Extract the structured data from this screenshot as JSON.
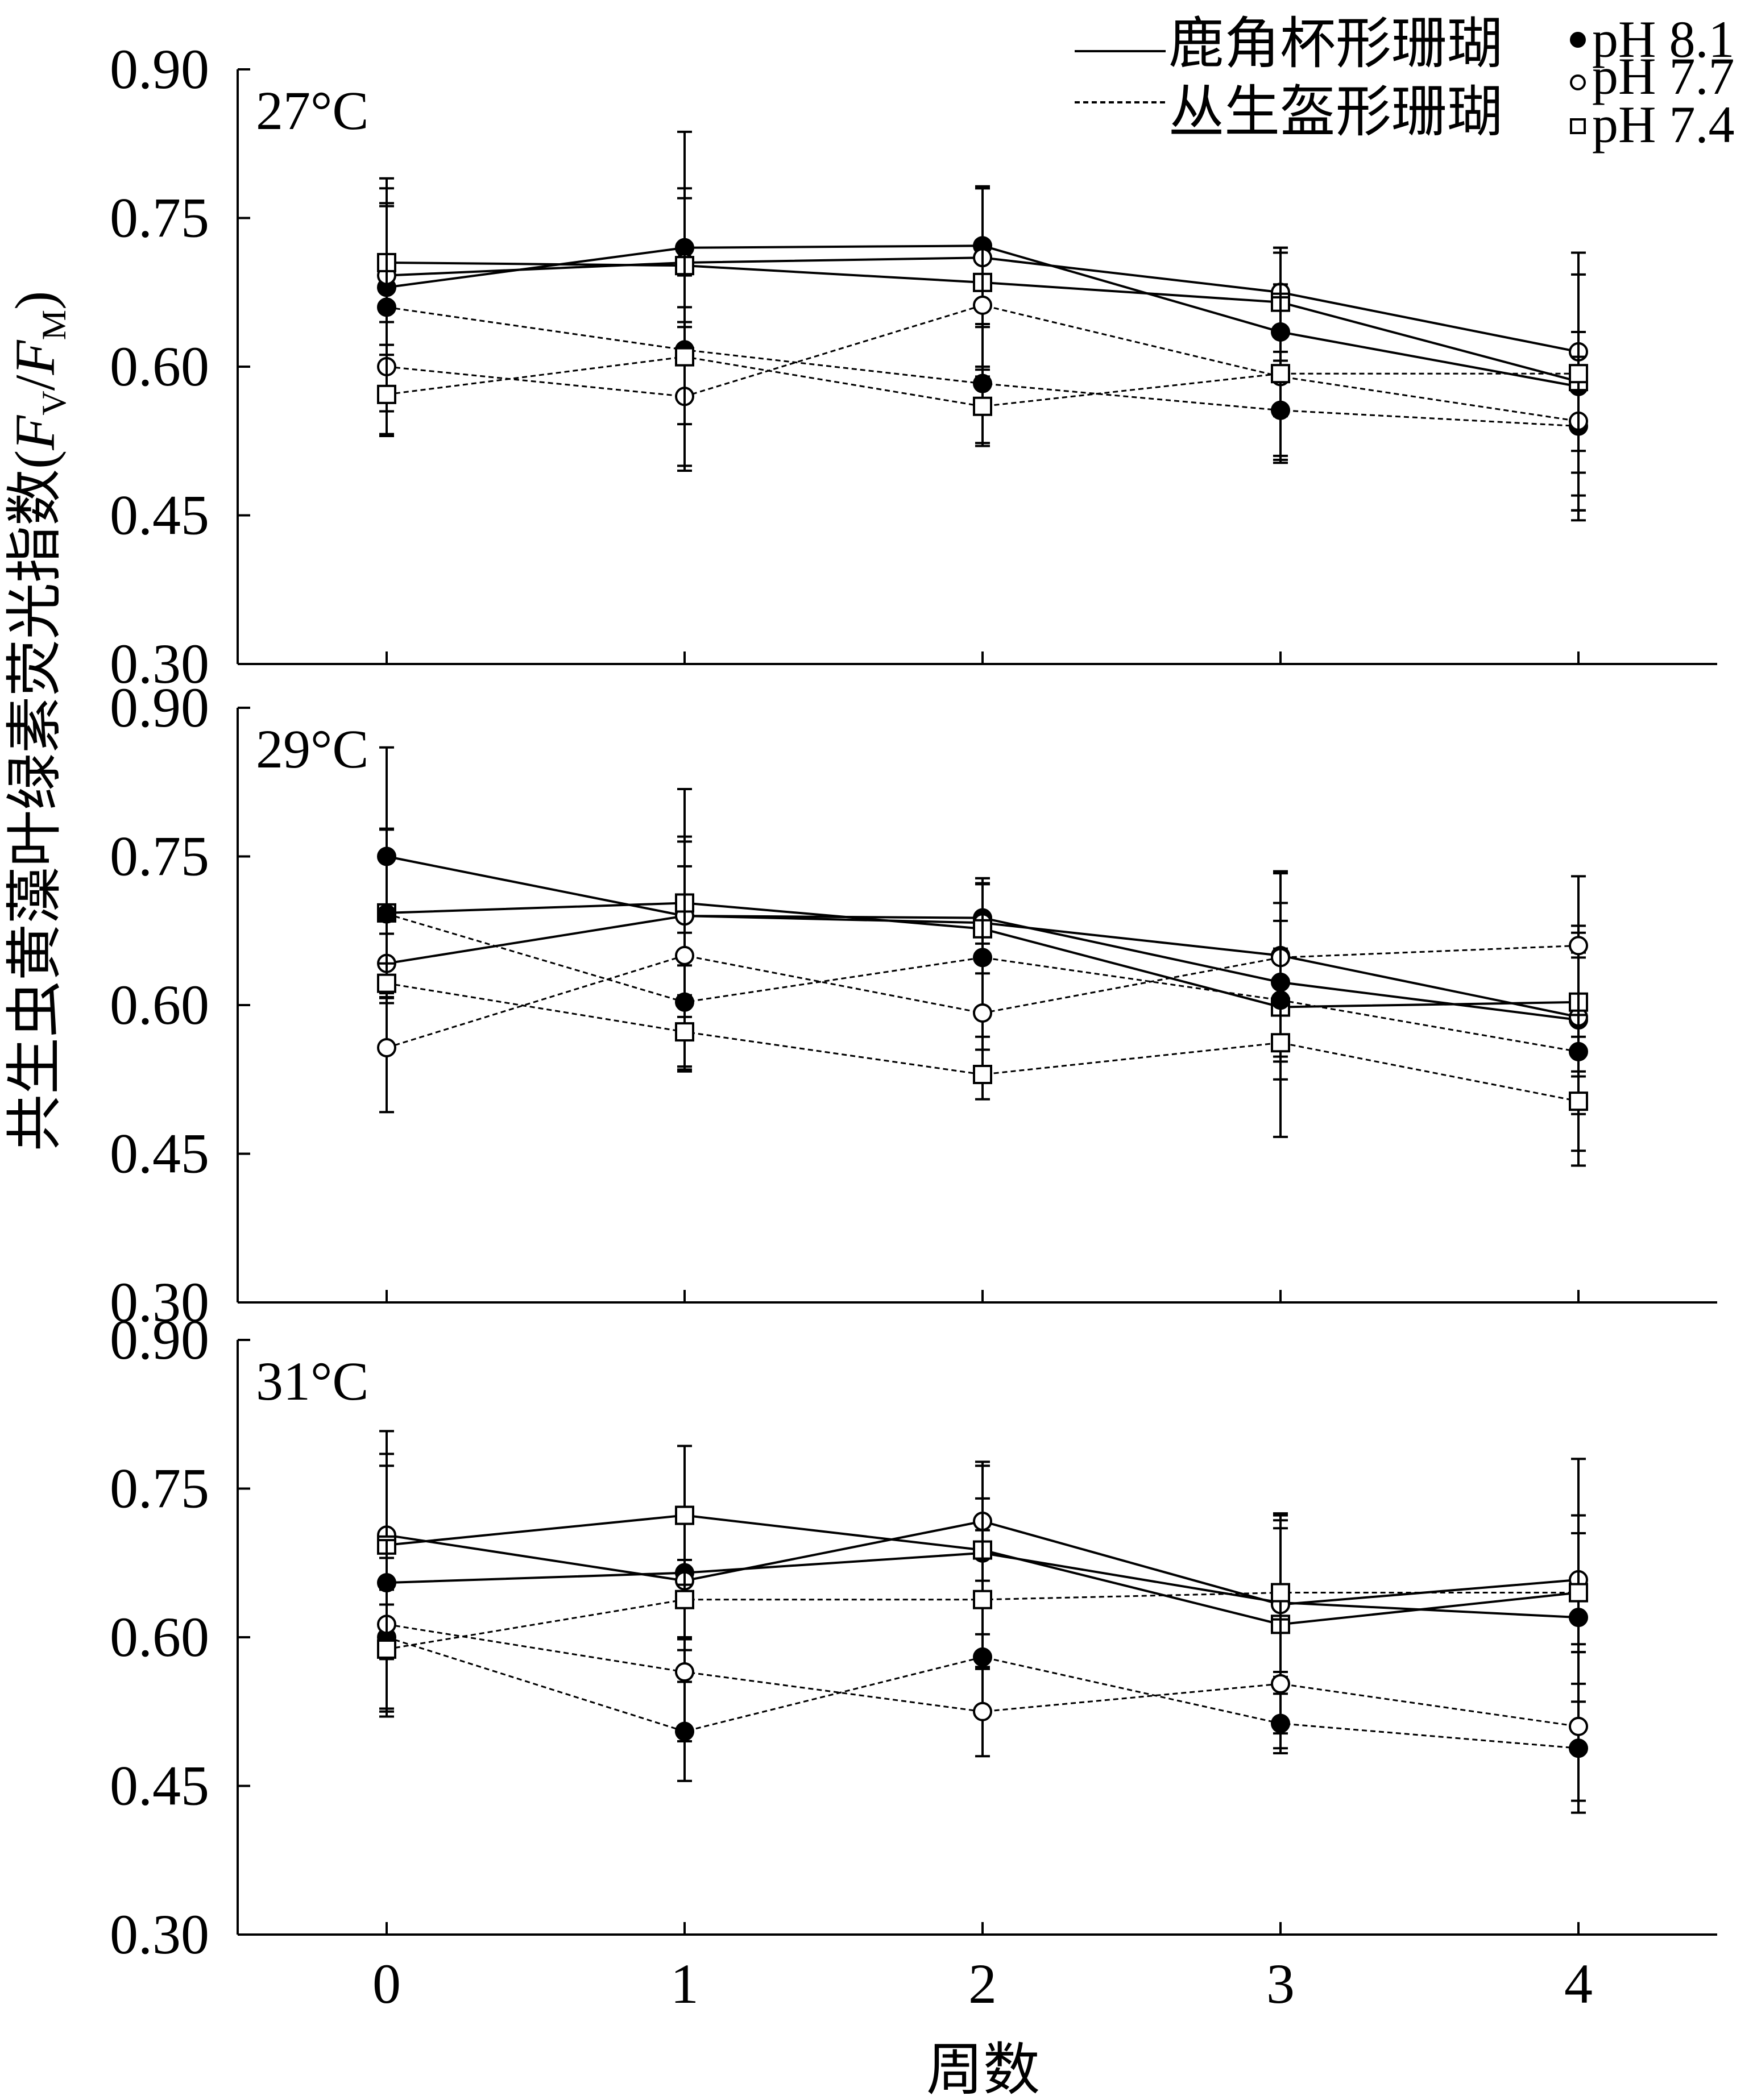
{
  "chart_data": {
    "type": "line",
    "xlabel": "周数",
    "ylabel": "共生虫黄藻叶绿素荧光指数(FV/FM)",
    "ylabel_parts": {
      "prefix": "共生虫黄藻叶绿素荧光指数(",
      "F1": "F",
      "sub1": "V",
      "slash": "/",
      "F2": "F",
      "sub2": "M",
      "suffix": ")"
    },
    "x_ticks": [
      0,
      1,
      2,
      3,
      4
    ],
    "y_ticks": [
      "0.30",
      "0.45",
      "0.60",
      "0.75",
      "0.90"
    ],
    "ylim": [
      0.3,
      0.9
    ],
    "xlim": [
      -0.5,
      4.5
    ],
    "grid": false,
    "legend_position": "top-right",
    "legend": {
      "species": [
        {
          "name": "鹿角杯形珊瑚",
          "line": "solid"
        },
        {
          "name": "丛生盔形珊瑚",
          "line": "dashed"
        }
      ],
      "ph": [
        {
          "name": "pH 8.1",
          "marker": "filled-circle"
        },
        {
          "name": "pH 7.7",
          "marker": "open-circle"
        },
        {
          "name": "pH 7.4",
          "marker": "open-square"
        }
      ]
    },
    "panels": [
      {
        "label": "27°C",
        "series": [
          {
            "name": "鹿角杯形珊瑚 pH 8.1",
            "line": "solid",
            "marker": "filled-circle",
            "x": [
              0,
              1,
              2,
              3,
              4
            ],
            "y": [
              0.68,
              0.72,
              0.722,
              0.635,
              0.58
            ],
            "err": [
              0.1,
              0.06,
              0.06,
              0.085,
              0.135
            ]
          },
          {
            "name": "鹿角杯形珊瑚 pH 7.7",
            "line": "solid",
            "marker": "open-circle",
            "x": [
              0,
              1,
              2,
              3,
              4
            ],
            "y": [
              0.692,
              0.705,
              0.71,
              0.675,
              0.615
            ],
            "err": [
              0.07,
              0.065,
              0.07,
              0.045,
              0.1
            ]
          },
          {
            "name": "鹿角杯形珊瑚 pH 7.4",
            "line": "solid",
            "marker": "open-square",
            "x": [
              0,
              1,
              2,
              3,
              4
            ],
            "y": [
              0.705,
              0.702,
              0.685,
              0.665,
              0.585
            ],
            "err": [
              0.06,
              0.135,
              0.095,
              0.05,
              0.13
            ]
          },
          {
            "name": "丛生盔形珊瑚 pH 8.1",
            "line": "dashed",
            "marker": "filled-circle",
            "x": [
              0,
              1,
              2,
              3,
              4
            ],
            "y": [
              0.66,
              0.617,
              0.583,
              0.556,
              0.54
            ],
            "err": [
              0.13,
              0.075,
              0.06,
              0.05,
              0.07
            ]
          },
          {
            "name": "丛生盔形珊瑚 pH 7.7",
            "line": "dashed",
            "marker": "open-circle",
            "x": [
              0,
              1,
              2,
              3,
              4
            ],
            "y": [
              0.6,
              0.57,
              0.662,
              0.59,
              0.545
            ],
            "err": [
              0.045,
              0.075,
              0.065,
              0.08,
              0.09
            ]
          },
          {
            "name": "丛生盔形珊瑚 pH 7.4",
            "line": "dashed",
            "marker": "open-square",
            "x": [
              0,
              1,
              2,
              3,
              4
            ],
            "y": [
              0.572,
              0.61,
              0.56,
              0.593,
              0.593
            ],
            "err": [
              0.04,
              0.11,
              0.04,
              0.09,
              0.1
            ]
          }
        ]
      },
      {
        "label": "29°C",
        "series": [
          {
            "name": "鹿角杯形珊瑚 pH 8.1",
            "line": "solid",
            "marker": "filled-circle",
            "x": [
              0,
              1,
              2,
              3,
              4
            ],
            "y": [
              0.75,
              0.69,
              0.688,
              0.623,
              0.585
            ],
            "err": [
              0.11,
              0.08,
              0.04,
              0.08,
              0.095
            ]
          },
          {
            "name": "鹿角杯形珊瑚 pH 7.7",
            "line": "solid",
            "marker": "open-circle",
            "x": [
              0,
              1,
              2,
              3,
              4
            ],
            "y": [
              0.642,
              0.69,
              0.683,
              0.65,
              0.588
            ],
            "err": [
              0.03,
              0.05,
              0.04,
              0.085,
              0.06
            ]
          },
          {
            "name": "鹿角杯形珊瑚 pH 7.4",
            "line": "solid",
            "marker": "open-square",
            "x": [
              0,
              1,
              2,
              3,
              4
            ],
            "y": [
              0.693,
              0.703,
              0.677,
              0.598,
              0.603
            ],
            "err": [
              0.085,
              0.115,
              0.045,
              0.05,
              0.07
            ]
          },
          {
            "name": "丛生盔形珊瑚 pH 8.1",
            "line": "dashed",
            "marker": "filled-circle",
            "x": [
              0,
              1,
              2,
              3,
              4
            ],
            "y": [
              0.692,
              0.603,
              0.648,
              0.605,
              0.553
            ],
            "err": [
              0.085,
              0.07,
              0.08,
              0.08,
              0.1
            ]
          },
          {
            "name": "丛生盔形珊瑚 pH 7.7",
            "line": "dashed",
            "marker": "open-circle",
            "x": [
              0,
              1,
              2,
              3,
              4
            ],
            "y": [
              0.557,
              0.65,
              0.592,
              0.648,
              0.66
            ],
            "err": [
              0.065,
              0.115,
              0.07,
              0.085,
              0.07
            ]
          },
          {
            "name": "丛生盔形珊瑚 pH 7.4",
            "line": "dashed",
            "marker": "open-square",
            "x": [
              0,
              1,
              2,
              3,
              4
            ],
            "y": [
              0.622,
              0.573,
              0.53,
              0.562,
              0.503
            ],
            "err": [
              0.02,
              0.035,
              0.025,
              0.095,
              0.065
            ]
          }
        ]
      },
      {
        "label": "31°C",
        "series": [
          {
            "name": "鹿角杯形珊瑚 pH 8.1",
            "line": "solid",
            "marker": "filled-circle",
            "x": [
              0,
              1,
              2,
              3,
              4
            ],
            "y": [
              0.655,
              0.665,
              0.685,
              0.635,
              0.62
            ],
            "err": [
              0.13,
              0.065,
              0.055,
              0.075,
              0.085
            ]
          },
          {
            "name": "鹿角杯形珊瑚 pH 7.7",
            "line": "solid",
            "marker": "open-circle",
            "x": [
              0,
              1,
              2,
              3,
              4
            ],
            "y": [
              0.703,
              0.657,
              0.717,
              0.633,
              0.658
            ],
            "err": [
              0.07,
              0.07,
              0.06,
              0.085,
              0.065
            ]
          },
          {
            "name": "鹿角杯形珊瑚 pH 7.4",
            "line": "solid",
            "marker": "open-square",
            "x": [
              0,
              1,
              2,
              3,
              4
            ],
            "y": [
              0.693,
              0.723,
              0.688,
              0.613,
              0.645
            ],
            "err": [
              0.115,
              0.07,
              0.085,
              0.11,
              0.135
            ]
          },
          {
            "name": "丛生盔形珊瑚 pH 8.1",
            "line": "dashed",
            "marker": "filled-circle",
            "x": [
              0,
              1,
              2,
              3,
              4
            ],
            "y": [
              0.6,
              0.505,
              0.58,
              0.513,
              0.488
            ],
            "err": [
              0.08,
              0.05,
              0.055,
              0.03,
              0.065
            ]
          },
          {
            "name": "丛生盔形珊瑚 pH 7.7",
            "line": "dashed",
            "marker": "open-circle",
            "x": [
              0,
              1,
              2,
              3,
              4
            ],
            "y": [
              0.613,
              0.565,
              0.525,
              0.553,
              0.51
            ],
            "err": [
              0.085,
              0.07,
              0.045,
              0.065,
              0.075
            ]
          },
          {
            "name": "丛生盔形珊瑚 pH 7.4",
            "line": "dashed",
            "marker": "open-square",
            "x": [
              0,
              1,
              2,
              3,
              4
            ],
            "y": [
              0.588,
              0.638,
              0.638,
              0.645,
              0.645
            ],
            "err": [
              0.06,
              0.04,
              0.07,
              0.08,
              0.06
            ]
          }
        ]
      }
    ]
  }
}
